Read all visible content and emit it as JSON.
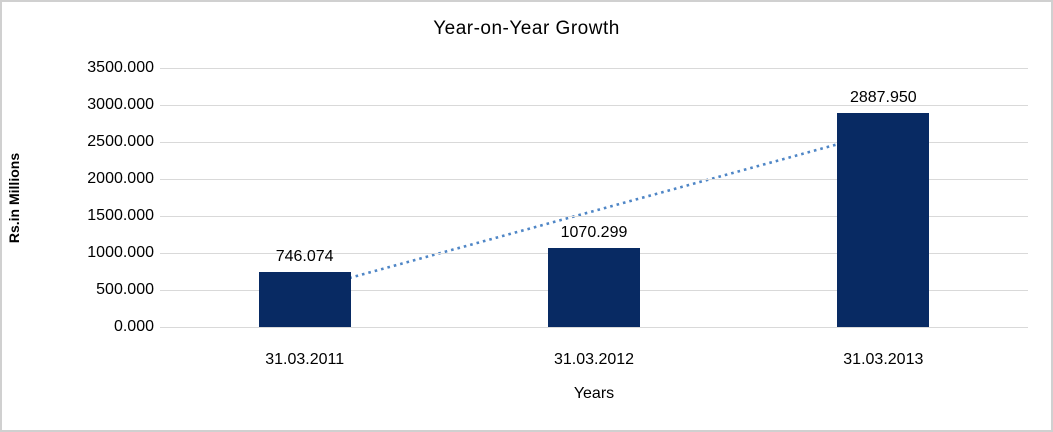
{
  "window": {
    "background": "#ffffff",
    "frame_border_color": "#d0d0d0"
  },
  "chart_data": {
    "type": "bar",
    "title": "Year-on-Year Growth",
    "xlabel": "Years",
    "ylabel": "Rs.in Millions",
    "categories": [
      "31.03.2011",
      "31.03.2012",
      "31.03.2013"
    ],
    "values": [
      746.074,
      1070.299,
      2887.95
    ],
    "data_labels": [
      "746.074",
      "1070.299",
      "2887.950"
    ],
    "ylim": [
      0,
      3500
    ],
    "ytick_step": 500,
    "ytick_labels": [
      "0.000",
      "500.000",
      "1000.000",
      "1500.000",
      "2000.000",
      "2500.000",
      "3000.000",
      "3500.000"
    ],
    "grid": true,
    "legend_position": "none",
    "bar_color": "#082a63",
    "gridline_color": "#d9d9d9",
    "text_color": "#000000",
    "trendline": {
      "type": "linear",
      "style": "dotted",
      "color": "#4f86c6",
      "start_value": 497,
      "end_value": 2639
    }
  }
}
